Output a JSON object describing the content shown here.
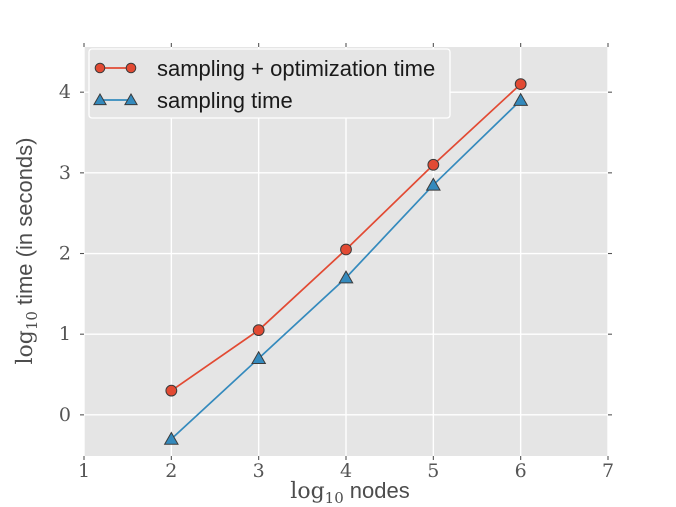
{
  "chart_data": {
    "type": "line",
    "title": "",
    "xlabel": {
      "math_prefix": "log",
      "subscript": "10",
      "text": "nodes",
      "plain": "log10 nodes"
    },
    "ylabel": {
      "math_prefix": "log",
      "subscript": "10",
      "text": "time (in seconds)",
      "plain": "log10 time (in seconds)"
    },
    "xlim": [
      1,
      7
    ],
    "ylim": [
      -0.51,
      4.56
    ],
    "xticks": [
      1,
      2,
      3,
      4,
      5,
      6,
      7
    ],
    "yticks": [
      0,
      1,
      2,
      3,
      4
    ],
    "grid": true,
    "legend_position": "upper left",
    "x": [
      2,
      3,
      4,
      5,
      6
    ],
    "series": [
      {
        "name": "sampling + optimization time",
        "marker": "circle",
        "color": "#E24A33",
        "values": [
          0.3,
          1.05,
          2.05,
          3.1,
          4.1
        ]
      },
      {
        "name": "sampling time",
        "marker": "triangle",
        "color": "#348ABD",
        "values": [
          -0.3,
          0.7,
          1.7,
          2.85,
          3.9
        ]
      }
    ],
    "colors": {
      "figure_bg": "#FFFFFF",
      "plot_bg": "#E5E5E5",
      "grid": "#FFFFFF",
      "tick_mark": "#555555",
      "tick_label": "#555555",
      "axis_label": "#4D4D4D",
      "legend_bg": "#E5E5E5",
      "legend_border": "#FFFFFF",
      "legend_text": "#1A1A1A",
      "marker_edge": "#3B3B3B"
    }
  }
}
